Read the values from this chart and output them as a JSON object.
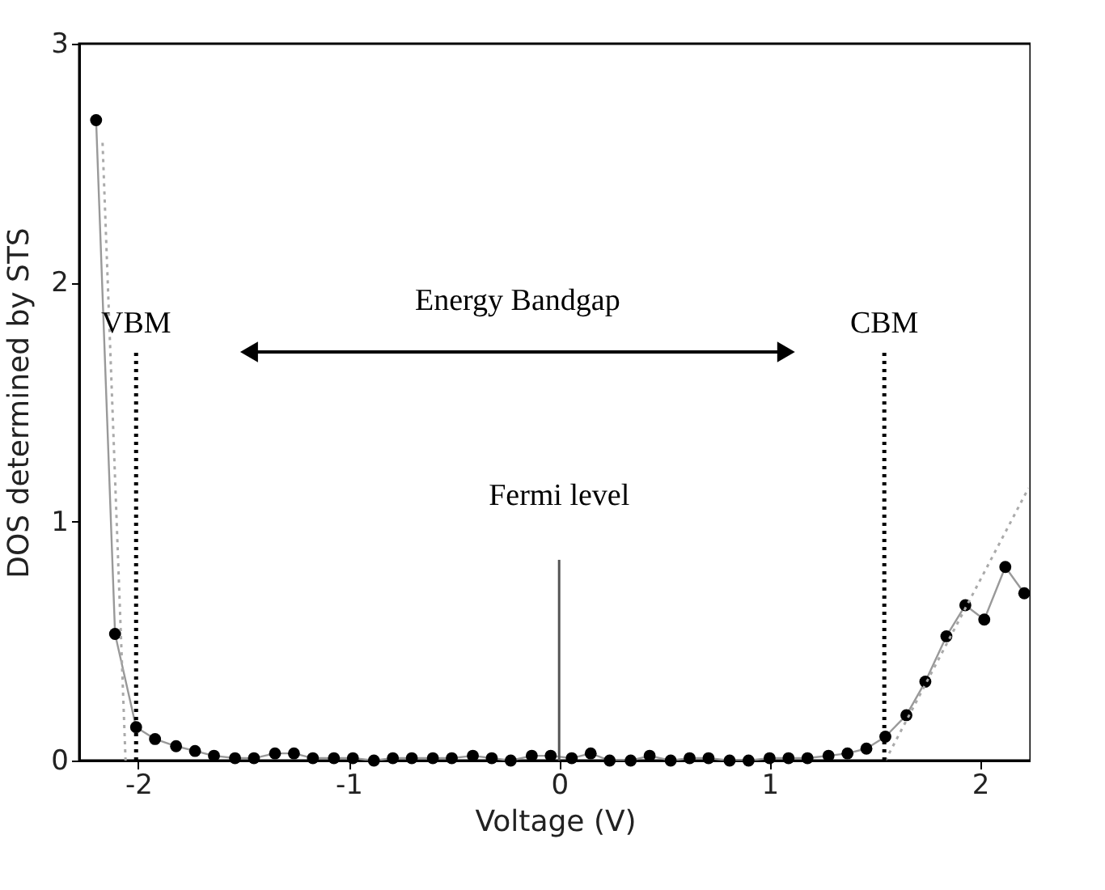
{
  "chart_data": {
    "type": "line",
    "xlabel": "Voltage (V)",
    "ylabel": "DOS determined by STS",
    "xlim": [
      -2.28,
      2.24
    ],
    "xticks": [
      -2,
      -1,
      0,
      1,
      2
    ],
    "ylim": [
      0,
      3
    ],
    "yticks": [
      0,
      1,
      2,
      3
    ],
    "grid": false,
    "series": [
      {
        "type": "line",
        "color": "#000000",
        "marker": "circle",
        "line_style": "solid",
        "x": [
          -2.2,
          -2.11,
          -2.01,
          -1.92,
          -1.82,
          -1.73,
          -1.64,
          -1.54,
          -1.45,
          -1.35,
          -1.26,
          -1.17,
          -1.07,
          -0.98,
          -0.88,
          -0.79,
          -0.7,
          -0.6,
          -0.51,
          -0.41,
          -0.32,
          -0.23,
          -0.13,
          -0.04,
          0.06,
          0.15,
          0.24,
          0.34,
          0.43,
          0.53,
          0.62,
          0.71,
          0.81,
          0.9,
          1.0,
          1.09,
          1.18,
          1.28,
          1.37,
          1.46,
          1.55,
          1.65,
          1.74,
          1.84,
          1.93,
          2.02,
          2.12,
          2.21
        ],
        "values": [
          2.68,
          0.53,
          0.14,
          0.09,
          0.06,
          0.04,
          0.02,
          0.01,
          0.01,
          0.03,
          0.03,
          0.01,
          0.01,
          0.01,
          0.0,
          0.01,
          0.01,
          0.01,
          0.01,
          0.02,
          0.01,
          0.0,
          0.02,
          0.02,
          0.01,
          0.03,
          0.0,
          0.0,
          0.02,
          0.0,
          0.01,
          0.01,
          0.0,
          0.0,
          0.01,
          0.01,
          0.01,
          0.02,
          0.03,
          0.05,
          0.1,
          0.19,
          0.33,
          0.52,
          0.65,
          0.59,
          0.81,
          0.7
        ]
      },
      {
        "type": "line",
        "color": "#aaaaaa",
        "marker": "none",
        "line_style": "dotted",
        "x": [
          -2.06,
          -2.17
        ],
        "values": [
          0,
          2.6
        ]
      },
      {
        "type": "line",
        "color": "#aaaaaa",
        "marker": "none",
        "line_style": "dotted",
        "x": [
          1.55,
          2.23
        ],
        "values": [
          0,
          1.14
        ]
      }
    ],
    "ref_lines": [
      {
        "axis": "x",
        "value": -2.01,
        "label": "VBM",
        "color": "#000000",
        "line_style": "dotted"
      },
      {
        "axis": "x",
        "value": 1.545,
        "label": "CBM",
        "color": "#000000",
        "line_style": "dotted"
      },
      {
        "axis": "x",
        "value": 0,
        "label": "Fermi level",
        "color": "#555555",
        "line_style": "solid"
      }
    ],
    "annotations": [
      "Energy Bandgap"
    ]
  }
}
